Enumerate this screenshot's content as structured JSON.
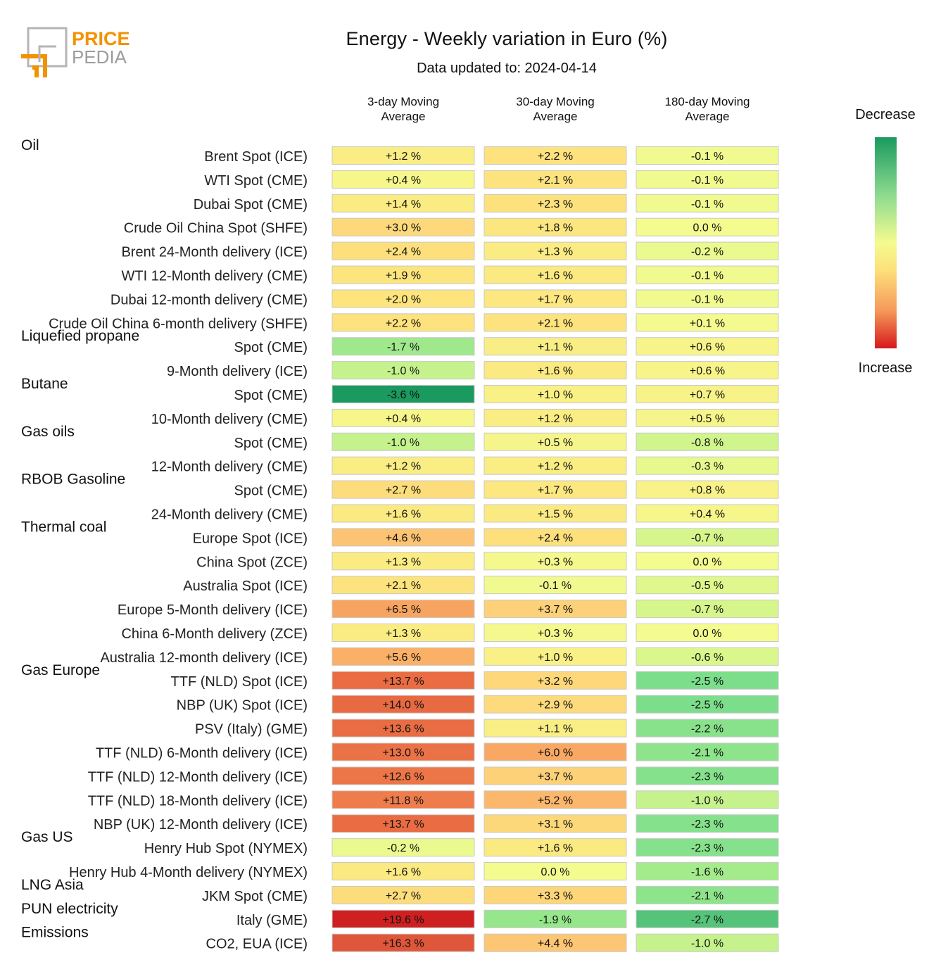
{
  "logo": {
    "line1": "PRICE",
    "line2": "PEDIA"
  },
  "header": {
    "title": "Energy - Weekly variation in Euro (%)",
    "subtitle": "Data updated to: 2024-04-14"
  },
  "legend": {
    "top_label": "Decrease",
    "bottom_label": "Increase"
  },
  "colors": {
    "decrease": "#1a9a5f",
    "neutral": "#f4fb8f",
    "increase": "#d7191c",
    "brand_orange": "#f39200",
    "brand_gray": "#9d9d9c"
  },
  "chart_data": {
    "type": "heatmap",
    "title": "Energy - Weekly variation in Euro (%)",
    "unit": "%",
    "columns": [
      "3-day Moving Average",
      "30-day Moving Average",
      "180-day Moving Average"
    ],
    "column_labels": [
      [
        "3-day Moving",
        "Average"
      ],
      [
        "30-day Moving",
        "Average"
      ],
      [
        "180-day Moving",
        "Average"
      ]
    ],
    "rows": [
      {
        "group": "Oil",
        "label": "Brent Spot (ICE)",
        "values": [
          1.2,
          2.2,
          -0.1
        ]
      },
      {
        "group": "",
        "label": "WTI Spot (CME)",
        "values": [
          0.4,
          2.1,
          -0.1
        ]
      },
      {
        "group": "",
        "label": "Dubai Spot (CME)",
        "values": [
          1.4,
          2.3,
          -0.1
        ]
      },
      {
        "group": "",
        "label": "Crude Oil China Spot (SHFE)",
        "values": [
          3.0,
          1.8,
          0.0
        ]
      },
      {
        "group": "",
        "label": "Brent 24-Month delivery (ICE)",
        "values": [
          2.4,
          1.3,
          -0.2
        ]
      },
      {
        "group": "",
        "label": "WTI 12-Month delivery (CME)",
        "values": [
          1.9,
          1.6,
          -0.1
        ]
      },
      {
        "group": "",
        "label": "Dubai 12-month delivery (CME)",
        "values": [
          2.0,
          1.7,
          -0.1
        ]
      },
      {
        "group": "",
        "label": "Crude Oil China 6-month delivery (SHFE)",
        "values": [
          2.2,
          2.1,
          0.1
        ]
      },
      {
        "group": "Liquefied propane",
        "label": "Spot (CME)",
        "values": [
          -1.7,
          1.1,
          0.6
        ]
      },
      {
        "group": "",
        "label": "9-Month delivery (ICE)",
        "values": [
          -1.0,
          1.6,
          0.6
        ]
      },
      {
        "group": "Butane",
        "label": "Spot (CME)",
        "values": [
          -3.6,
          1.0,
          0.7
        ]
      },
      {
        "group": "",
        "label": "10-Month delivery (CME)",
        "values": [
          0.4,
          1.2,
          0.5
        ]
      },
      {
        "group": "Gas oils",
        "label": "Spot (CME)",
        "values": [
          -1.0,
          0.5,
          -0.8
        ]
      },
      {
        "group": "",
        "label": "12-Month delivery (CME)",
        "values": [
          1.2,
          1.2,
          -0.3
        ]
      },
      {
        "group": "RBOB Gasoline",
        "label": "Spot (CME)",
        "values": [
          2.7,
          1.7,
          0.8
        ]
      },
      {
        "group": "",
        "label": "24-Month delivery (CME)",
        "values": [
          1.6,
          1.5,
          0.4
        ]
      },
      {
        "group": "Thermal coal",
        "label": "Europe Spot (ICE)",
        "values": [
          4.6,
          2.4,
          -0.7
        ]
      },
      {
        "group": "",
        "label": "China Spot (ZCE)",
        "values": [
          1.3,
          0.3,
          0.0
        ]
      },
      {
        "group": "",
        "label": "Australia Spot (ICE)",
        "values": [
          2.1,
          -0.1,
          -0.5
        ]
      },
      {
        "group": "",
        "label": "Europe 5-Month delivery (ICE)",
        "values": [
          6.5,
          3.7,
          -0.7
        ]
      },
      {
        "group": "",
        "label": "China 6-Month delivery (ZCE)",
        "values": [
          1.3,
          0.3,
          0.0
        ]
      },
      {
        "group": "",
        "label": "Australia 12-month delivery (ICE)",
        "values": [
          5.6,
          1.0,
          -0.6
        ]
      },
      {
        "group": "Gas Europe",
        "label": "TTF (NLD) Spot (ICE)",
        "values": [
          13.7,
          3.2,
          -2.5
        ]
      },
      {
        "group": "",
        "label": "NBP (UK) Spot (ICE)",
        "values": [
          14.0,
          2.9,
          -2.5
        ]
      },
      {
        "group": "",
        "label": "PSV (Italy) (GME)",
        "values": [
          13.6,
          1.1,
          -2.2
        ]
      },
      {
        "group": "",
        "label": "TTF (NLD) 6-Month delivery (ICE)",
        "values": [
          13.0,
          6.0,
          -2.1
        ]
      },
      {
        "group": "",
        "label": "TTF (NLD) 12-Month delivery (ICE)",
        "values": [
          12.6,
          3.7,
          -2.3
        ]
      },
      {
        "group": "",
        "label": "TTF (NLD) 18-Month delivery (ICE)",
        "values": [
          11.8,
          5.2,
          -1.0
        ]
      },
      {
        "group": "",
        "label": "NBP (UK) 12-Month delivery (ICE)",
        "values": [
          13.7,
          3.1,
          -2.3
        ]
      },
      {
        "group": "Gas US",
        "label": "Henry Hub Spot (NYMEX)",
        "values": [
          -0.2,
          1.6,
          -2.3
        ]
      },
      {
        "group": "",
        "label": "Henry Hub 4-Month delivery (NYMEX)",
        "values": [
          1.6,
          0.0,
          -1.6
        ]
      },
      {
        "group": "LNG Asia",
        "label": "JKM Spot (CME)",
        "values": [
          2.7,
          3.3,
          -2.1
        ]
      },
      {
        "group": "PUN electricity",
        "label": "Italy (GME)",
        "values": [
          19.6,
          -1.9,
          -2.7
        ]
      },
      {
        "group": "Emissions",
        "label": "CO2, EUA (ICE)",
        "values": [
          16.3,
          4.4,
          -1.0
        ]
      }
    ]
  }
}
